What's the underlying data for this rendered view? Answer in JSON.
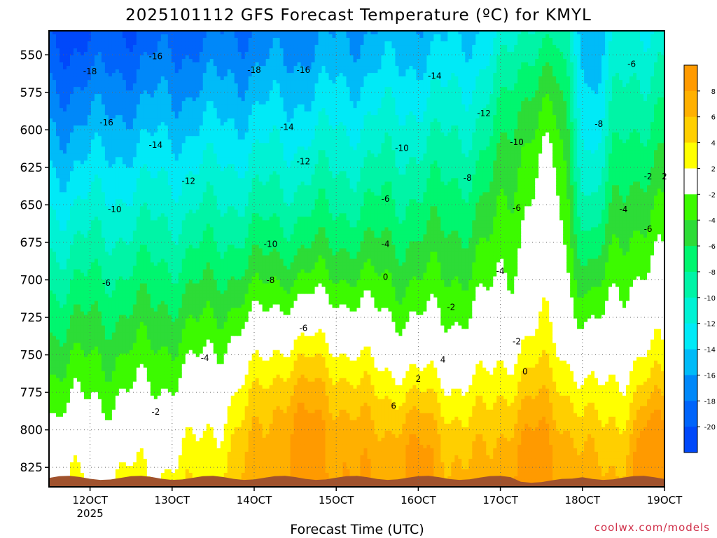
{
  "chart_data": {
    "type": "heatmap",
    "title": "2025101112 GFS Forecast Temperature (ºC) for KMYL",
    "xlabel": "Forecast Time (UTC)",
    "ylabel": "",
    "credit": "coolwx.com/models",
    "x_ticks": [
      {
        "label": "12OCT",
        "sub": "2025",
        "value": 12
      },
      {
        "label": "13OCT",
        "sub": "",
        "value": 13
      },
      {
        "label": "14OCT",
        "sub": "",
        "value": 14
      },
      {
        "label": "15OCT",
        "sub": "",
        "value": 15
      },
      {
        "label": "16OCT",
        "sub": "",
        "value": 16
      },
      {
        "label": "17OCT",
        "sub": "",
        "value": 17
      },
      {
        "label": "18OCT",
        "sub": "",
        "value": 18
      },
      {
        "label": "19OCT",
        "sub": "",
        "value": 19
      }
    ],
    "xlim": [
      11.5,
      19
    ],
    "y_ticks": [
      550,
      575,
      600,
      625,
      650,
      675,
      700,
      725,
      750,
      775,
      800,
      825
    ],
    "ylim": [
      534,
      838
    ],
    "y_axis": "pressure (inverted)",
    "colorbar": [
      {
        "label": "8",
        "color": "#ff9a00"
      },
      {
        "label": "6",
        "color": "#ffb000"
      },
      {
        "label": "4",
        "color": "#ffcf00"
      },
      {
        "label": "2",
        "color": "#ffff00"
      },
      {
        "label": "-2",
        "color": "#ffffff"
      },
      {
        "label": "-4",
        "color": "#3cfa00"
      },
      {
        "label": "-6",
        "color": "#2ddc37"
      },
      {
        "label": "-8",
        "color": "#00f66f"
      },
      {
        "label": "-10",
        "color": "#00f4a6"
      },
      {
        "label": "-12",
        "color": "#00f2d4"
      },
      {
        "label": "-14",
        "color": "#00eaf7"
      },
      {
        "label": "-16",
        "color": "#00bbf8"
      },
      {
        "label": "-18",
        "color": "#0088f9"
      },
      {
        "label": "-20",
        "color": "#0064fb"
      },
      {
        "label": "",
        "color": "#0048fa"
      }
    ],
    "bands": [
      {
        "level": -20,
        "color": "#0048fa",
        "rows": [
          [
            12.0,
            545,
            555
          ],
          [
            12.3,
            540,
            565
          ],
          [
            12.6,
            540,
            570
          ]
        ]
      },
      {
        "level": -18,
        "color": "#0064fb"
      },
      {
        "level": -16,
        "color": "#0088f9"
      },
      {
        "level": -14,
        "color": "#00bbf8"
      },
      {
        "level": -12,
        "color": "#00eaf7"
      },
      {
        "level": -10,
        "color": "#00f2d4"
      },
      {
        "level": -8,
        "color": "#00f4a6"
      },
      {
        "level": -6,
        "color": "#00f66f"
      },
      {
        "level": -4,
        "color": "#2ddc37"
      },
      {
        "level": -2,
        "color": "#3cfa00"
      },
      {
        "level": 2,
        "color": "#ffffff"
      },
      {
        "level": 4,
        "color": "#ffff00"
      },
      {
        "level": 6,
        "color": "#ffcf00"
      },
      {
        "level": 8,
        "color": "#ffb000"
      }
    ],
    "contour_labels": [
      {
        "text": "-18",
        "x": 12.0,
        "y": 563
      },
      {
        "text": "-16",
        "x": 12.8,
        "y": 553
      },
      {
        "text": "-16",
        "x": 12.2,
        "y": 597
      },
      {
        "text": "-14",
        "x": 12.8,
        "y": 612
      },
      {
        "text": "-18",
        "x": 14.0,
        "y": 562
      },
      {
        "text": "-16",
        "x": 14.6,
        "y": 562
      },
      {
        "text": "-14",
        "x": 14.4,
        "y": 600
      },
      {
        "text": "-12",
        "x": 13.2,
        "y": 636
      },
      {
        "text": "-12",
        "x": 14.6,
        "y": 623
      },
      {
        "text": "-10",
        "x": 12.3,
        "y": 655
      },
      {
        "text": "-10",
        "x": 14.2,
        "y": 678
      },
      {
        "text": "-8",
        "x": 14.2,
        "y": 702
      },
      {
        "text": "-6",
        "x": 12.2,
        "y": 704
      },
      {
        "text": "-6",
        "x": 14.6,
        "y": 734
      },
      {
        "text": "-4",
        "x": 13.4,
        "y": 754
      },
      {
        "text": "-2",
        "x": 12.8,
        "y": 790
      },
      {
        "text": "-14",
        "x": 16.2,
        "y": 566
      },
      {
        "text": "-12",
        "x": 16.8,
        "y": 591
      },
      {
        "text": "-10",
        "x": 15.8,
        "y": 614
      },
      {
        "text": "-10",
        "x": 17.2,
        "y": 610
      },
      {
        "text": "-8",
        "x": 16.6,
        "y": 634
      },
      {
        "text": "-6",
        "x": 15.6,
        "y": 648
      },
      {
        "text": "-6",
        "x": 17.2,
        "y": 654
      },
      {
        "text": "-4",
        "x": 15.6,
        "y": 678
      },
      {
        "text": "-4",
        "x": 17.0,
        "y": 696
      },
      {
        "text": "-2",
        "x": 16.4,
        "y": 720
      },
      {
        "text": "-2",
        "x": 17.2,
        "y": 743
      },
      {
        "text": "0",
        "x": 15.6,
        "y": 700
      },
      {
        "text": "0",
        "x": 17.3,
        "y": 763
      },
      {
        "text": "2",
        "x": 16.0,
        "y": 768
      },
      {
        "text": "4",
        "x": 16.3,
        "y": 755
      },
      {
        "text": "6",
        "x": 15.7,
        "y": 786
      },
      {
        "text": "-8",
        "x": 18.2,
        "y": 598
      },
      {
        "text": "-6",
        "x": 18.6,
        "y": 558
      },
      {
        "text": "-6",
        "x": 18.8,
        "y": 668
      },
      {
        "text": "-4",
        "x": 18.5,
        "y": 655
      },
      {
        "text": "-2",
        "x": 18.8,
        "y": 633
      },
      {
        "text": "2",
        "x": 19.0,
        "y": 633
      }
    ]
  }
}
